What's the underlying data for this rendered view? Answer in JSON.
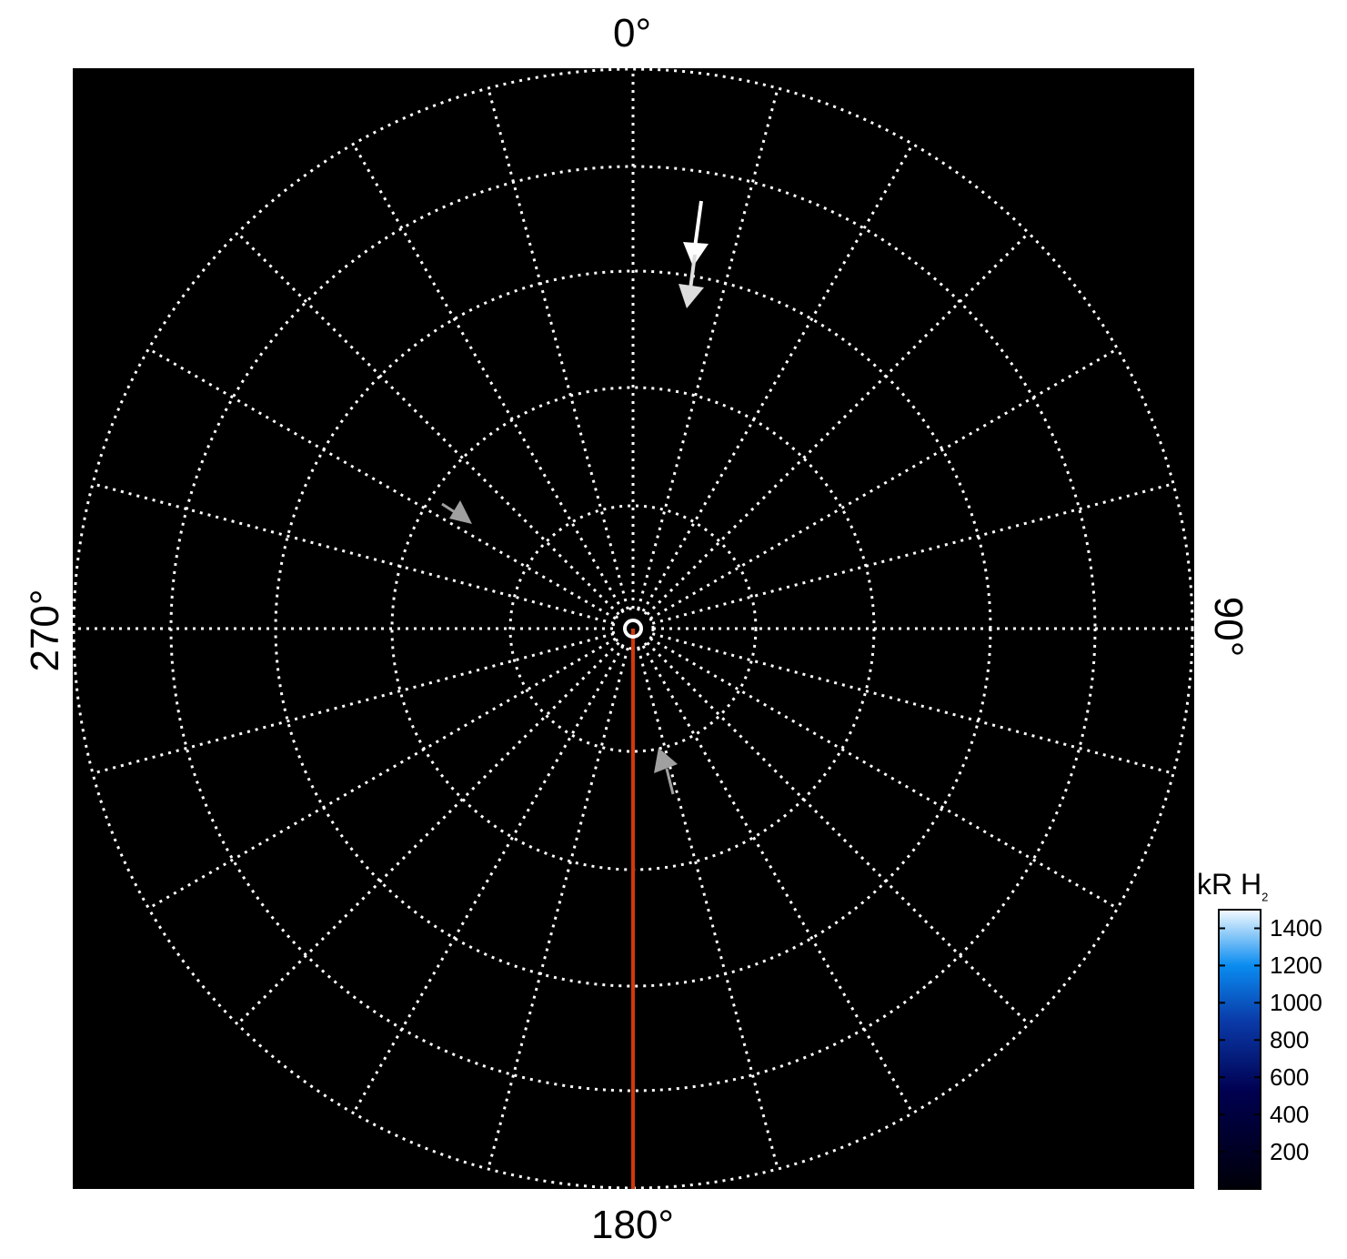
{
  "axes": {
    "top_label": "0°",
    "bottom_label": "180°",
    "left_label": "270°",
    "right_label": "90°"
  },
  "colorbar": {
    "title": "kR H",
    "title_subscript": "2",
    "ticks": [
      "1400",
      "1200",
      "1000",
      "800",
      "600",
      "400",
      "200"
    ],
    "tick_values": [
      1400,
      1200,
      1000,
      800,
      600,
      400,
      200
    ],
    "range": [
      0,
      1500
    ],
    "colors": [
      "#000008",
      "#000050",
      "#0a3aa8",
      "#0a8cf0",
      "#f4faff"
    ]
  },
  "colors": {
    "background": "#000000",
    "grid": "#ffffff",
    "meridian_line": "#d2380c",
    "arrow_primary": "#ffffff",
    "arrow_secondary": "#a0a0a0"
  }
}
